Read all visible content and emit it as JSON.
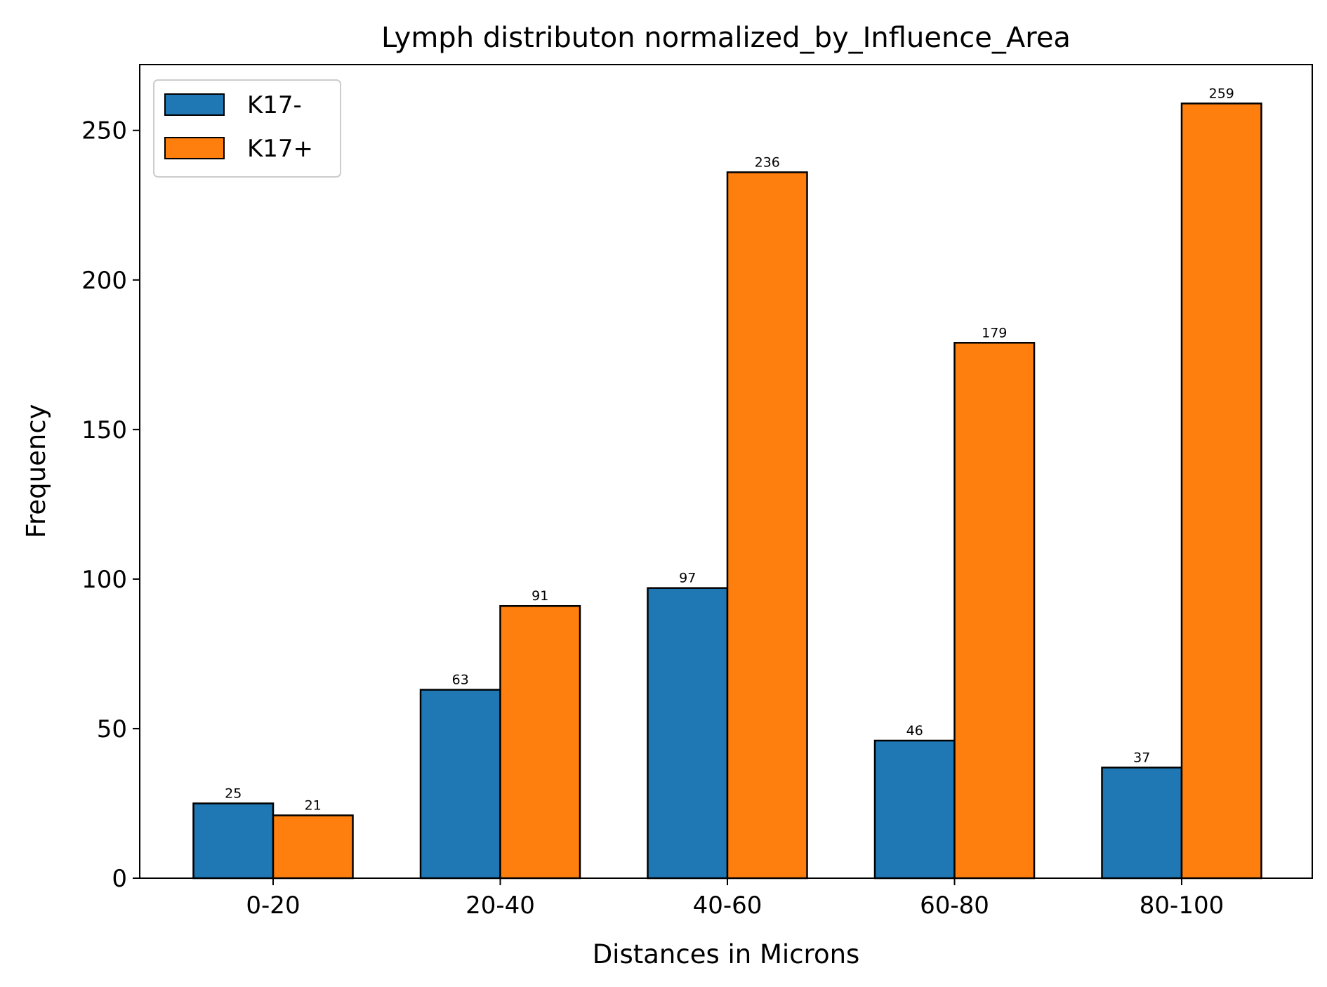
{
  "chart_data": {
    "type": "bar",
    "title": "Lymph distributon normalized_by_Influence_Area",
    "xlabel": "Distances in Microns",
    "ylabel": "Frequency",
    "categories": [
      "0-20",
      "20-40",
      "40-60",
      "60-80",
      "80-100"
    ],
    "ylim": [
      0,
      272
    ],
    "yticks": [
      0,
      50,
      100,
      150,
      200,
      250
    ],
    "series": [
      {
        "name": "K17-",
        "color": "#1f77b4",
        "values": [
          25,
          63,
          97,
          46,
          37
        ]
      },
      {
        "name": "K17+",
        "color": "#ff7f0e",
        "values": [
          21,
          91,
          236,
          179,
          259
        ]
      }
    ],
    "legend": {
      "placement": "top-left"
    },
    "grid": false,
    "edge_color": "#000000"
  }
}
